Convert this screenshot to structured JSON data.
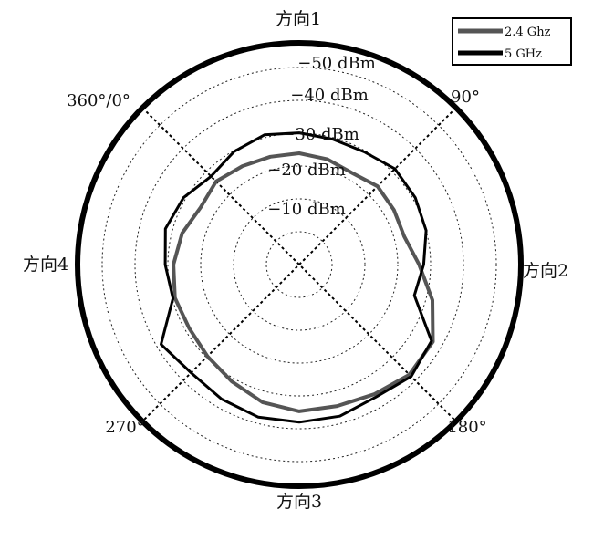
{
  "chart_data": {
    "type": "polar-line",
    "directions": [
      {
        "id": "dir1",
        "label": "方向1"
      },
      {
        "id": "dir2",
        "label": "方向2"
      },
      {
        "id": "dir3",
        "label": "方向3"
      },
      {
        "id": "dir4",
        "label": "方向4"
      }
    ],
    "angle_labels": [
      "360°/0°",
      "90°",
      "180°",
      "270°"
    ],
    "ring_labels": [
      "−10 dBm",
      "−20 dBm",
      "−30 dBm",
      "−40 dBm",
      "−50 dBm"
    ],
    "ring_values": [
      -10,
      -20,
      -30,
      -40,
      -50
    ],
    "radial_range_dbm": [
      0,
      -60
    ],
    "legend_placement": "top-right",
    "grid": true,
    "series": [
      {
        "name": "2.4 Ghz",
        "color": "#555555",
        "theta_deg": [
          0,
          15,
          30,
          45,
          60,
          75,
          90,
          105,
          120,
          135,
          150,
          165,
          180,
          195,
          210,
          225,
          240,
          255,
          270,
          285,
          300,
          315,
          330,
          345
        ],
        "value_dbm": [
          -35.8,
          -34.6,
          -34.0,
          -33.9,
          -33.2,
          -32.2,
          -33.7,
          -33.3,
          -33.1,
          -36.5,
          -42.0,
          -47.0,
          -47.4,
          -45.6,
          -44.6,
          -44.7,
          -43.4,
          -41.1,
          -39.5,
          -38.7,
          -39.2,
          -38.3,
          -36.9,
          -34.7
        ]
      },
      {
        "name": "5 GHz",
        "color": "#000000",
        "theta_deg": [
          0,
          15,
          30,
          45,
          60,
          75,
          90,
          105,
          120,
          135,
          150,
          165,
          180,
          195,
          210,
          225,
          240,
          255,
          270,
          285,
          300,
          315,
          330,
          345
        ],
        "value_dbm": [
          -38.0,
          -39.7,
          -40.9,
          -40.1,
          -39.5,
          -39.6,
          -41.2,
          -40.8,
          -40.0,
          -37.9,
          -36.3,
          -46.5,
          -48.2,
          -46.6,
          -47.8,
          -48.0,
          -48.1,
          -47.3,
          -46.6,
          -48.6,
          -39.8,
          -40.8,
          -42.2,
          -40.7
        ]
      }
    ]
  }
}
